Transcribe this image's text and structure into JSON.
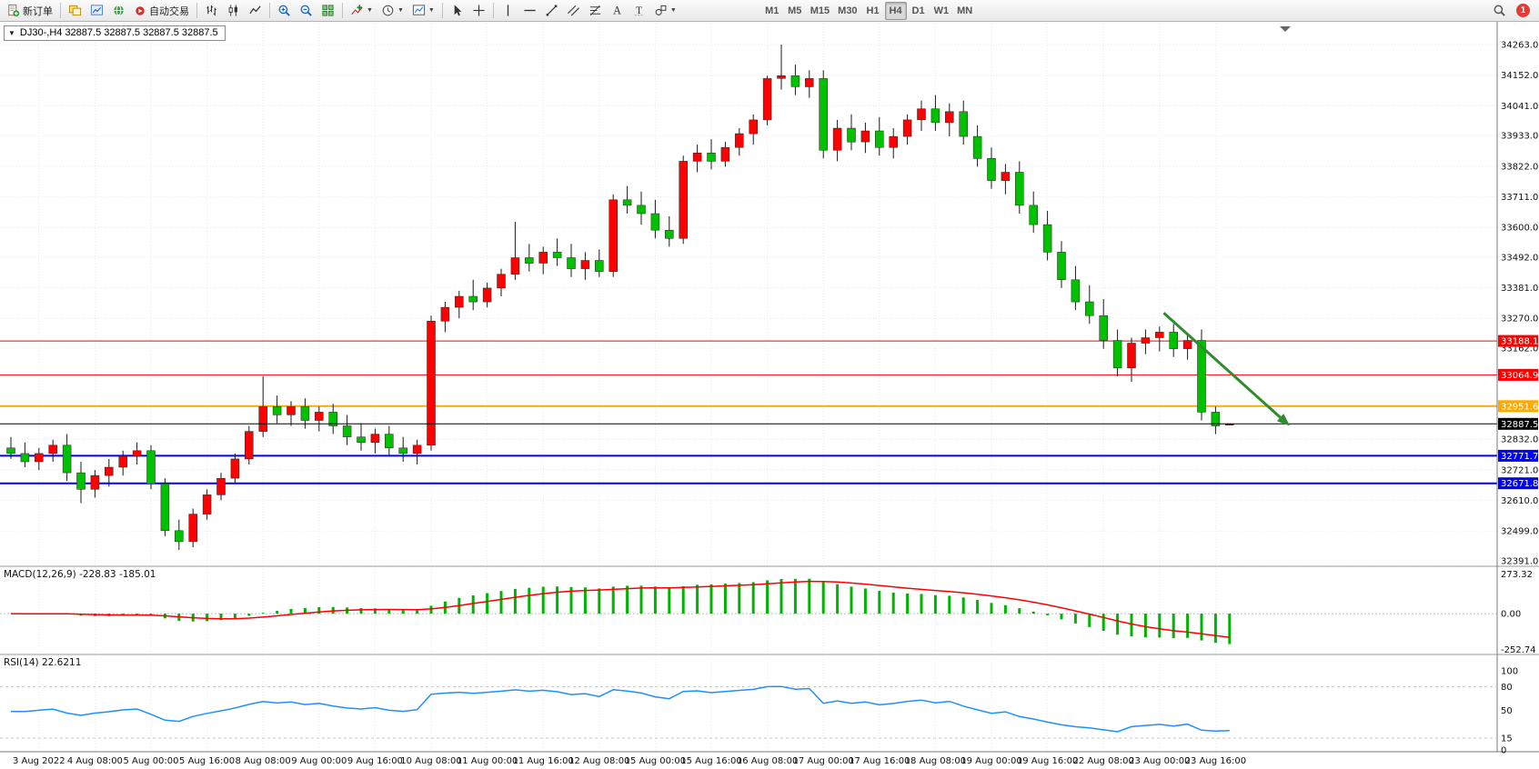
{
  "toolbar": {
    "new_order_label": "新订单",
    "auto_trading_label": "自动交易",
    "timeframes": [
      "M1",
      "M5",
      "M15",
      "M30",
      "H1",
      "H4",
      "D1",
      "W1",
      "MN"
    ],
    "active_timeframe": "H4",
    "notification_count": "1"
  },
  "chart": {
    "title": "DJ30-,H4 32887.5 32887.5 32887.5 32887.5",
    "symbol": "DJ30-",
    "period": "H4"
  },
  "chart_data": {
    "type": "candlestick",
    "title": "DJ30- H4",
    "price_range": {
      "min": 32374,
      "max": 34339
    },
    "colors": {
      "up": "#fe0000",
      "down": "#00c000",
      "wick": "#1a1a1a",
      "macd_hist": "#00b300",
      "macd_signal": "#ff0000",
      "rsi": "#1e90ff"
    },
    "y_axis_labels": [
      "34263.0",
      "34152.0",
      "34041.0",
      "33933.0",
      "33822.0",
      "33711.0",
      "33600.0",
      "33492.0",
      "33381.0",
      "33270.0",
      "33162.0",
      "32832.0",
      "32721.0",
      "32610.0",
      "32499.0",
      "32391.0"
    ],
    "x_labels": [
      "3 Aug 2022",
      "4 Aug 08:00",
      "5 Aug 00:00",
      "5 Aug 16:00",
      "8 Aug 08:00",
      "9 Aug 00:00",
      "9 Aug 16:00",
      "10 Aug 08:00",
      "11 Aug 00:00",
      "11 Aug 16:00",
      "12 Aug 08:00",
      "15 Aug 00:00",
      "15 Aug 16:00",
      "16 Aug 08:00",
      "17 Aug 00:00",
      "17 Aug 16:00",
      "18 Aug 08:00",
      "19 Aug 00:00",
      "19 Aug 16:00",
      "22 Aug 08:00",
      "23 Aug 00:00",
      "23 Aug 16:00"
    ],
    "candles": [
      [
        32800,
        32840,
        32760,
        32780
      ],
      [
        32780,
        32820,
        32730,
        32750
      ],
      [
        32750,
        32800,
        32720,
        32780
      ],
      [
        32780,
        32830,
        32750,
        32810
      ],
      [
        32810,
        32850,
        32680,
        32710
      ],
      [
        32710,
        32750,
        32600,
        32650
      ],
      [
        32650,
        32720,
        32620,
        32700
      ],
      [
        32700,
        32760,
        32660,
        32730
      ],
      [
        32730,
        32790,
        32700,
        32770
      ],
      [
        32770,
        32820,
        32740,
        32790
      ],
      [
        32790,
        32810,
        32650,
        32670
      ],
      [
        32670,
        32690,
        32480,
        32500
      ],
      [
        32500,
        32540,
        32430,
        32460
      ],
      [
        32460,
        32580,
        32440,
        32560
      ],
      [
        32560,
        32650,
        32540,
        32630
      ],
      [
        32630,
        32710,
        32610,
        32690
      ],
      [
        32690,
        32780,
        32670,
        32760
      ],
      [
        32760,
        32880,
        32740,
        32860
      ],
      [
        32860,
        33060,
        32840,
        32950
      ],
      [
        32950,
        32990,
        32890,
        32920
      ],
      [
        32920,
        32970,
        32880,
        32950
      ],
      [
        32950,
        32980,
        32870,
        32900
      ],
      [
        32900,
        32950,
        32860,
        32930
      ],
      [
        32930,
        32960,
        32850,
        32880
      ],
      [
        32880,
        32920,
        32810,
        32840
      ],
      [
        32840,
        32890,
        32790,
        32820
      ],
      [
        32820,
        32870,
        32780,
        32850
      ],
      [
        32850,
        32880,
        32770,
        32800
      ],
      [
        32800,
        32840,
        32750,
        32780
      ],
      [
        32780,
        32830,
        32740,
        32810
      ],
      [
        32810,
        33280,
        32790,
        33260
      ],
      [
        33260,
        33330,
        33220,
        33310
      ],
      [
        33310,
        33370,
        33270,
        33350
      ],
      [
        33350,
        33410,
        33300,
        33330
      ],
      [
        33330,
        33400,
        33310,
        33380
      ],
      [
        33380,
        33450,
        33350,
        33430
      ],
      [
        33430,
        33620,
        33410,
        33490
      ],
      [
        33490,
        33540,
        33440,
        33470
      ],
      [
        33470,
        33530,
        33430,
        33510
      ],
      [
        33510,
        33560,
        33460,
        33490
      ],
      [
        33490,
        33540,
        33420,
        33450
      ],
      [
        33450,
        33510,
        33410,
        33480
      ],
      [
        33480,
        33520,
        33420,
        33440
      ],
      [
        33440,
        33720,
        33420,
        33700
      ],
      [
        33700,
        33750,
        33650,
        33680
      ],
      [
        33680,
        33730,
        33610,
        33650
      ],
      [
        33650,
        33700,
        33560,
        33590
      ],
      [
        33590,
        33640,
        33530,
        33560
      ],
      [
        33560,
        33860,
        33540,
        33840
      ],
      [
        33840,
        33900,
        33800,
        33870
      ],
      [
        33870,
        33920,
        33810,
        33840
      ],
      [
        33840,
        33910,
        33820,
        33890
      ],
      [
        33890,
        33960,
        33860,
        33940
      ],
      [
        33940,
        34010,
        33900,
        33990
      ],
      [
        33990,
        34150,
        33970,
        34140
      ],
      [
        34140,
        34263,
        34100,
        34150
      ],
      [
        34150,
        34190,
        34080,
        34110
      ],
      [
        34110,
        34170,
        34070,
        34140
      ],
      [
        34140,
        34170,
        33850,
        33880
      ],
      [
        33880,
        33990,
        33840,
        33960
      ],
      [
        33960,
        34010,
        33880,
        33910
      ],
      [
        33910,
        33980,
        33870,
        33950
      ],
      [
        33950,
        34000,
        33860,
        33890
      ],
      [
        33890,
        33960,
        33850,
        33930
      ],
      [
        33930,
        34010,
        33900,
        33990
      ],
      [
        33990,
        34060,
        33950,
        34030
      ],
      [
        34030,
        34080,
        33950,
        33980
      ],
      [
        33980,
        34050,
        33930,
        34020
      ],
      [
        34020,
        34060,
        33900,
        33930
      ],
      [
        33930,
        33970,
        33820,
        33850
      ],
      [
        33850,
        33890,
        33740,
        33770
      ],
      [
        33770,
        33830,
        33720,
        33800
      ],
      [
        33800,
        33840,
        33650,
        33680
      ],
      [
        33680,
        33730,
        33580,
        33610
      ],
      [
        33610,
        33660,
        33480,
        33510
      ],
      [
        33510,
        33550,
        33380,
        33410
      ],
      [
        33410,
        33460,
        33300,
        33330
      ],
      [
        33330,
        33390,
        33250,
        33280
      ],
      [
        33280,
        33340,
        33160,
        33190
      ],
      [
        33190,
        33230,
        33060,
        33090
      ],
      [
        33090,
        33200,
        33040,
        33180
      ],
      [
        33180,
        33230,
        33140,
        33200
      ],
      [
        33200,
        33240,
        33150,
        33220
      ],
      [
        33220,
        33250,
        33130,
        33160
      ],
      [
        33160,
        33210,
        33120,
        33190
      ],
      [
        33190,
        33230,
        32900,
        32930
      ],
      [
        32930,
        32950,
        32850,
        32880
      ],
      [
        32887.5,
        32887.5,
        32887.5,
        32887.5
      ]
    ],
    "horizontal_lines": [
      {
        "price": 33188.1,
        "label": "33188.1",
        "color": "#ff0000",
        "width": 1
      },
      {
        "price": 33064.9,
        "label": "33064.9",
        "color": "#ff0000",
        "width": 1
      },
      {
        "price": 32951.6,
        "label": "32951.6",
        "color": "#ffaa00",
        "width": 2
      },
      {
        "price": 32771.7,
        "label": "32771.7",
        "color": "#0000ff",
        "width": 2
      },
      {
        "price": 32671.8,
        "label": "32671.8",
        "color": "#0000ff",
        "width": 2
      }
    ],
    "bid_line": {
      "price": 32887.5,
      "label": "32887.5",
      "color": "#000000"
    },
    "trend_arrow": {
      "from_candle": 82.3,
      "from_price": 33290,
      "to_candle": 91.3,
      "to_price": 32880,
      "color": "#2e8b2e"
    },
    "indicators": {
      "macd": {
        "name": "MACD(12,26,9)",
        "value_main": "-228.83",
        "value_signal": "-185.01",
        "scale_max": "273.32",
        "scale_zero": "0.00",
        "scale_min": "-252.74",
        "params": [
          12,
          26,
          9
        ]
      },
      "rsi": {
        "name": "RSI(14)",
        "value": "22.6211",
        "period": 14,
        "scale_labels": [
          "100",
          "80",
          "50",
          "15",
          "0"
        ],
        "levels": [
          80,
          15
        ]
      }
    }
  }
}
